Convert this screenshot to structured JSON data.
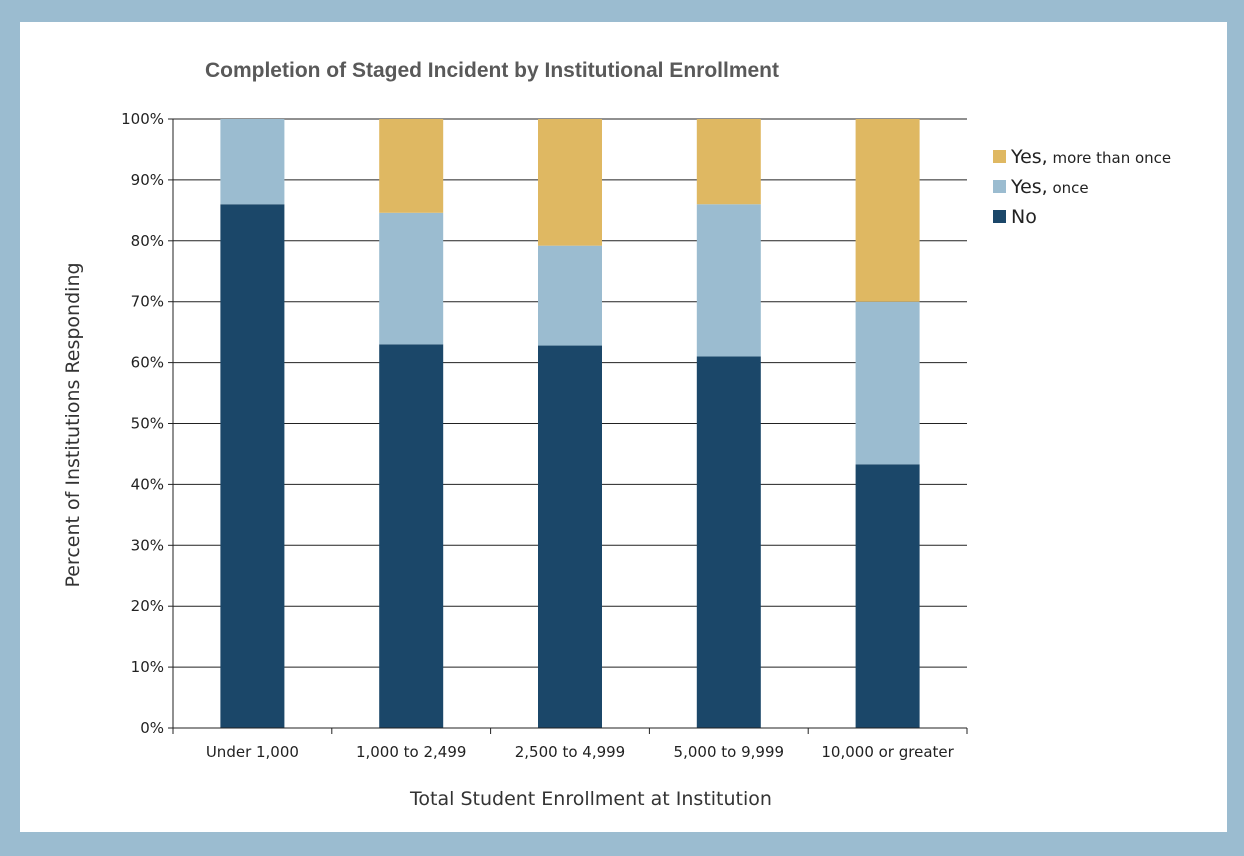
{
  "chart_data": {
    "type": "bar",
    "stacked": true,
    "title": "Completion of Staged Incident by Institutional Enrollment",
    "xlabel": "Total Student Enrollment at Institution",
    "ylabel": "Percent of Institutions Responding",
    "categories": [
      "Under 1,000",
      "1,000 to 2,499",
      "2,500 to 4,999",
      "5,000 to 9,999",
      "10,000 or greater"
    ],
    "series": [
      {
        "name": "No",
        "values": [
          86,
          63,
          62.8,
          61,
          43.3
        ],
        "color": "#1b4769"
      },
      {
        "name": "Yes, once",
        "values": [
          14,
          21.6,
          16.4,
          25,
          26.7
        ],
        "color": "#9bbcd0"
      },
      {
        "name": "Yes, more than once",
        "values": [
          0,
          15.4,
          20.8,
          14,
          30
        ],
        "color": "#dfb862"
      }
    ],
    "legend": [
      {
        "main": "Yes,",
        "sub": "more than once",
        "color": "#dfb862"
      },
      {
        "main": "Yes,",
        "sub": "once",
        "color": "#9bbcd0"
      },
      {
        "main": "No",
        "sub": "",
        "color": "#1b4769"
      }
    ],
    "ylim": [
      0,
      100
    ],
    "yticks": [
      "0%",
      "10%",
      "20%",
      "30%",
      "40%",
      "50%",
      "60%",
      "70%",
      "80%",
      "90%",
      "100%"
    ],
    "grid": true,
    "legend_position": "top-right"
  }
}
